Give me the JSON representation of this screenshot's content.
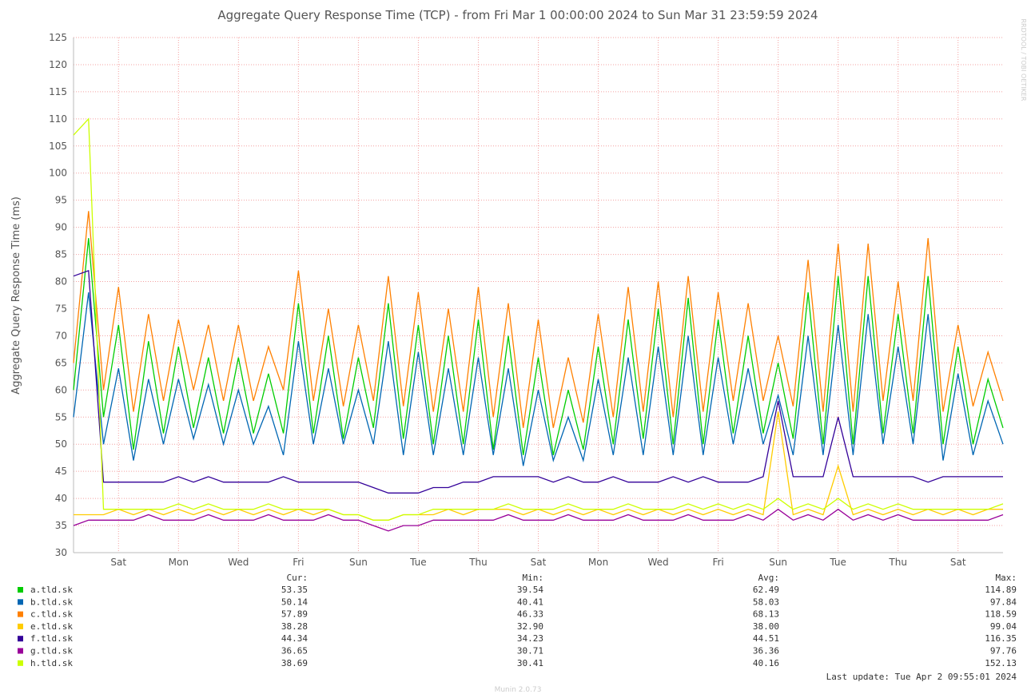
{
  "chart_data": {
    "type": "line",
    "title": "Aggregate Query Response Time (TCP) - from Fri Mar  1 00:00:00 2024 to Sun Mar 31 23:59:59 2024",
    "y_label": "Aggregate Query Response Time (ms)",
    "watermark": "RRDTOOL / TOBI OETIKER",
    "footer": "Munin 2.0.73",
    "last_update": "Last update: Tue Apr  2 09:55:01 2024",
    "legend_headers": [
      "Cur:",
      "Min:",
      "Avg:",
      "Max:"
    ],
    "grid": true,
    "xlim": [
      0,
      31
    ],
    "ylim": [
      30,
      125
    ],
    "yticks": [
      30,
      35,
      40,
      45,
      50,
      55,
      60,
      65,
      70,
      75,
      80,
      85,
      90,
      95,
      100,
      105,
      110,
      115,
      120,
      125
    ],
    "xticks": [
      {
        "value": 1.5,
        "label": "Sat"
      },
      {
        "value": 3.5,
        "label": "Mon"
      },
      {
        "value": 5.5,
        "label": "Wed"
      },
      {
        "value": 7.5,
        "label": "Fri"
      },
      {
        "value": 9.5,
        "label": "Sun"
      },
      {
        "value": 11.5,
        "label": "Tue"
      },
      {
        "value": 13.5,
        "label": "Thu"
      },
      {
        "value": 15.5,
        "label": "Sat"
      },
      {
        "value": 17.5,
        "label": "Mon"
      },
      {
        "value": 19.5,
        "label": "Wed"
      },
      {
        "value": 21.5,
        "label": "Fri"
      },
      {
        "value": 23.5,
        "label": "Sun"
      },
      {
        "value": 25.5,
        "label": "Tue"
      },
      {
        "value": 27.5,
        "label": "Thu"
      },
      {
        "value": 29.5,
        "label": "Sat"
      }
    ],
    "x": [
      0,
      0.5,
      1,
      1.5,
      2,
      2.5,
      3,
      3.5,
      4,
      4.5,
      5,
      5.5,
      6,
      6.5,
      7,
      7.5,
      8,
      8.5,
      9,
      9.5,
      10,
      10.5,
      11,
      11.5,
      12,
      12.5,
      13,
      13.5,
      14,
      14.5,
      15,
      15.5,
      16,
      16.5,
      17,
      17.5,
      18,
      18.5,
      19,
      19.5,
      20,
      20.5,
      21,
      21.5,
      22,
      22.5,
      23,
      23.5,
      24,
      24.5,
      25,
      25.5,
      26,
      26.5,
      27,
      27.5,
      28,
      28.5,
      29,
      29.5,
      30,
      30.5,
      31
    ],
    "series": [
      {
        "name": "a.tld.sk",
        "color": "#00cc00",
        "cur": "53.35",
        "min": "39.54",
        "avg": "62.49",
        "max": "114.89",
        "values": [
          60,
          88,
          55,
          72,
          49,
          69,
          52,
          68,
          53,
          66,
          52,
          66,
          52,
          63,
          52,
          76,
          52,
          70,
          51,
          66,
          53,
          76,
          51,
          72,
          50,
          70,
          50,
          73,
          49,
          70,
          48,
          66,
          48,
          60,
          49,
          68,
          50,
          73,
          51,
          75,
          50,
          77,
          50,
          73,
          52,
          70,
          52,
          65,
          51,
          78,
          50,
          81,
          50,
          81,
          52,
          74,
          52,
          81,
          50,
          68,
          50,
          62,
          53
        ]
      },
      {
        "name": "b.tld.sk",
        "color": "#0066b3",
        "cur": "50.14",
        "min": "40.41",
        "avg": "58.03",
        "max": "97.84",
        "values": [
          55,
          78,
          50,
          64,
          47,
          62,
          50,
          62,
          51,
          61,
          50,
          60,
          50,
          57,
          48,
          69,
          50,
          64,
          50,
          60,
          50,
          69,
          48,
          67,
          48,
          64,
          48,
          66,
          48,
          64,
          46,
          60,
          47,
          55,
          47,
          62,
          48,
          66,
          48,
          68,
          48,
          70,
          48,
          66,
          50,
          64,
          50,
          59,
          48,
          70,
          48,
          72,
          48,
          74,
          50,
          68,
          50,
          74,
          47,
          63,
          48,
          58,
          50
        ]
      },
      {
        "name": "c.tld.sk",
        "color": "#ff8000",
        "cur": "57.89",
        "min": "46.33",
        "avg": "68.13",
        "max": "118.59",
        "values": [
          65,
          93,
          60,
          79,
          56,
          74,
          58,
          73,
          60,
          72,
          58,
          72,
          58,
          68,
          60,
          82,
          58,
          75,
          57,
          72,
          58,
          81,
          57,
          78,
          56,
          75,
          56,
          79,
          55,
          76,
          53,
          73,
          53,
          66,
          54,
          74,
          55,
          79,
          56,
          80,
          55,
          81,
          56,
          78,
          58,
          76,
          58,
          70,
          57,
          84,
          56,
          87,
          56,
          87,
          58,
          80,
          58,
          88,
          56,
          72,
          57,
          67,
          58
        ]
      },
      {
        "name": "e.tld.sk",
        "color": "#ffcc00",
        "cur": "38.28",
        "min": "32.90",
        "avg": "38.00",
        "max": "99.04",
        "values": [
          37,
          37,
          37,
          38,
          37,
          38,
          37,
          38,
          37,
          38,
          37,
          38,
          37,
          38,
          37,
          38,
          37,
          38,
          37,
          37,
          36,
          36,
          37,
          37,
          37,
          38,
          37,
          38,
          38,
          38,
          37,
          38,
          37,
          38,
          37,
          38,
          37,
          38,
          37,
          38,
          37,
          38,
          37,
          38,
          37,
          38,
          37,
          56,
          37,
          38,
          37,
          46,
          37,
          38,
          37,
          38,
          37,
          38,
          37,
          38,
          37,
          38,
          38
        ]
      },
      {
        "name": "f.tld.sk",
        "color": "#330099",
        "cur": "44.34",
        "min": "34.23",
        "avg": "44.51",
        "max": "116.35",
        "values": [
          81,
          82,
          43,
          43,
          43,
          43,
          43,
          44,
          43,
          44,
          43,
          43,
          43,
          43,
          44,
          43,
          43,
          43,
          43,
          43,
          42,
          41,
          41,
          41,
          42,
          42,
          43,
          43,
          44,
          44,
          44,
          44,
          43,
          44,
          43,
          43,
          44,
          43,
          43,
          43,
          44,
          43,
          44,
          43,
          43,
          43,
          44,
          58,
          44,
          44,
          44,
          55,
          44,
          44,
          44,
          44,
          44,
          43,
          44,
          44,
          44,
          44,
          44
        ]
      },
      {
        "name": "g.tld.sk",
        "color": "#990099",
        "cur": "36.65",
        "min": "30.71",
        "avg": "36.36",
        "max": "97.76",
        "values": [
          35,
          36,
          36,
          36,
          36,
          37,
          36,
          36,
          36,
          37,
          36,
          36,
          36,
          37,
          36,
          36,
          36,
          37,
          36,
          36,
          35,
          34,
          35,
          35,
          36,
          36,
          36,
          36,
          36,
          37,
          36,
          36,
          36,
          37,
          36,
          36,
          36,
          37,
          36,
          36,
          36,
          37,
          36,
          36,
          36,
          37,
          36,
          38,
          36,
          37,
          36,
          38,
          36,
          37,
          36,
          37,
          36,
          36,
          36,
          36,
          36,
          36,
          37
        ]
      },
      {
        "name": "h.tld.sk",
        "color": "#ccff00",
        "cur": "38.69",
        "min": "30.41",
        "avg": "40.16",
        "max": "152.13",
        "values": [
          107,
          110,
          38,
          38,
          38,
          38,
          38,
          39,
          38,
          39,
          38,
          38,
          38,
          39,
          38,
          38,
          38,
          38,
          37,
          37,
          36,
          36,
          37,
          37,
          38,
          38,
          38,
          38,
          38,
          39,
          38,
          38,
          38,
          39,
          38,
          38,
          38,
          39,
          38,
          38,
          38,
          39,
          38,
          39,
          38,
          39,
          38,
          40,
          38,
          39,
          38,
          40,
          38,
          39,
          38,
          39,
          38,
          38,
          38,
          38,
          38,
          38,
          39
        ]
      }
    ]
  }
}
